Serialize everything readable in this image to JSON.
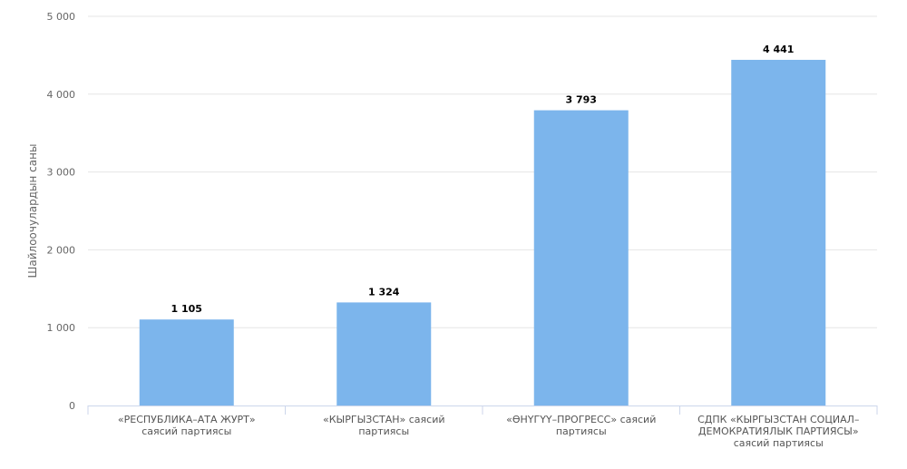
{
  "colors": {
    "bar": "#7cb5ec",
    "grid": "#e6e6e6",
    "axis": "#ccd6eb"
  },
  "chart_data": {
    "type": "bar",
    "title": "",
    "xlabel": "",
    "ylabel": "Шайлоочулардын саны",
    "ylim": [
      0,
      5000
    ],
    "yticks": [
      "0",
      "1 000",
      "2 000",
      "3 000",
      "4 000",
      "5 000"
    ],
    "ytick_values": [
      0,
      1000,
      2000,
      3000,
      4000,
      5000
    ],
    "grid": true,
    "categories": [
      "«РЕСПУБЛИКА–АТА ЖУРТ» саясий партиясы",
      "«КЫРГЫЗСТАН» саясий партиясы",
      "«ӨНҮГҮҮ–ПРОГРЕСС» саясий партиясы",
      "СДПК «КЫРГЫЗСТАН СОЦИАЛ–ДЕМОКРАТИЯЛЫК ПАРТИЯСЫ» саясий партиясы"
    ],
    "values": [
      1105,
      1324,
      3793,
      4441
    ],
    "data_labels": [
      "1 105",
      "1 324",
      "3 793",
      "4 441"
    ]
  }
}
